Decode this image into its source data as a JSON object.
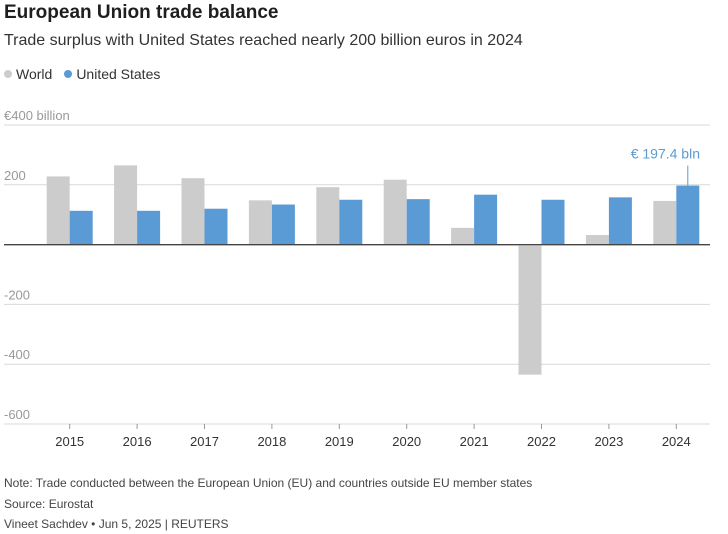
{
  "header": {
    "title": "European Union trade balance",
    "subtitle": "Trade surplus with United States reached nearly 200 billion euros in 2024"
  },
  "legend": [
    {
      "name": "World",
      "color": "#cccccc"
    },
    {
      "name": "United States",
      "color": "#5b9bd5"
    }
  ],
  "chart_data": {
    "type": "bar",
    "categories": [
      "2015",
      "2016",
      "2017",
      "2018",
      "2019",
      "2020",
      "2021",
      "2022",
      "2023",
      "2024"
    ],
    "series": [
      {
        "name": "World",
        "color": "#cccccc",
        "values": [
          228,
          265,
          222,
          148,
          192,
          217,
          56,
          -435,
          32,
          146
        ]
      },
      {
        "name": "United States",
        "color": "#5b9bd5",
        "values": [
          113,
          113,
          120,
          134,
          150,
          152,
          167,
          150,
          158,
          197.4
        ]
      }
    ],
    "y_ticks": [
      400,
      200,
      0,
      -200,
      -400,
      -600
    ],
    "y_tick_labels": [
      "€400 billion",
      "200",
      "",
      "-200",
      "-400",
      "-600"
    ],
    "ylim": [
      -600,
      400
    ],
    "grid": true,
    "annotation": {
      "text": "€ 197.4 bln",
      "category": "2024",
      "series": "United States",
      "color": "#5b9bd5"
    }
  },
  "footer": {
    "note": "Note: Trade conducted between the European Union (EU) and countries outside EU member states",
    "source": "Source: Eurostat",
    "credit": "Vineet Sachdev • Jun 5, 2025 | REUTERS"
  }
}
